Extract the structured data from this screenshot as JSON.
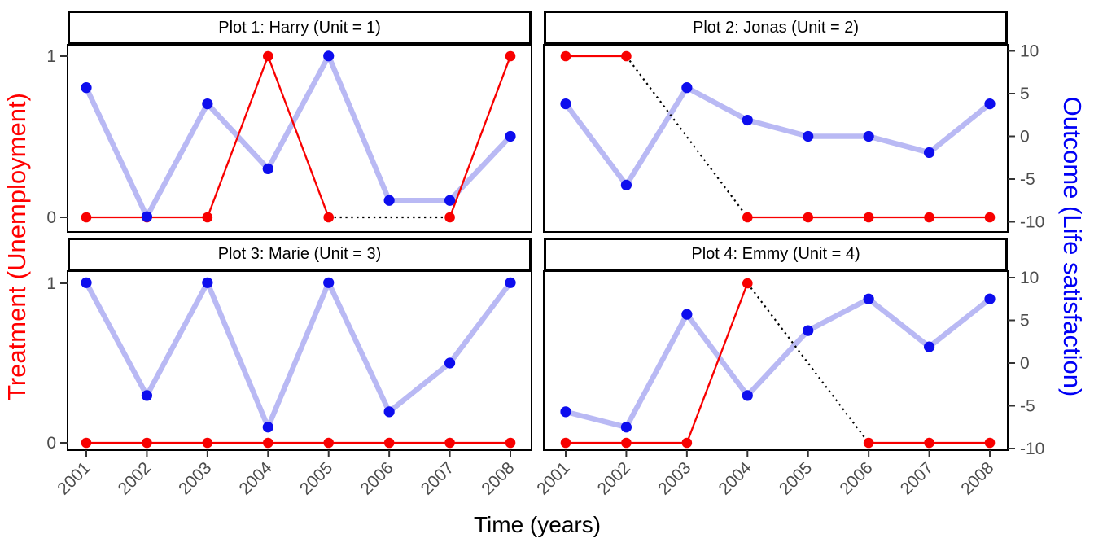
{
  "chart_data": {
    "type": "line",
    "title": "",
    "xlabel": "Time (years)",
    "ylabel_left": "Treatment (Unemployment)",
    "ylabel_right": "Outcome (Life satisfaction)",
    "x_tick_labels": [
      "2001",
      "2002",
      "2003",
      "2004",
      "2005",
      "2006",
      "2007",
      "2008"
    ],
    "y_ticks_left": [
      {
        "label": "0",
        "value": 0
      },
      {
        "label": "1",
        "value": 1
      }
    ],
    "y_ticks_right": [
      {
        "label": "-10",
        "value": -10
      },
      {
        "label": "-5",
        "value": -5
      },
      {
        "label": "0",
        "value": 0
      },
      {
        "label": "5",
        "value": 5
      },
      {
        "label": "10",
        "value": 10
      }
    ],
    "ylim_right": [
      -10,
      10
    ],
    "grid": false,
    "legend_position": "none",
    "facet_layout": "2x2",
    "panels": [
      {
        "title": "Plot 1: Harry (Unit = 1)",
        "unit": "Harry",
        "unit_id": 1,
        "treatment": [
          0,
          0,
          0,
          1,
          0,
          null,
          0,
          1
        ],
        "outcome": [
          5.7,
          -9.4,
          3.8,
          -3.8,
          9.4,
          -7.5,
          -7.5,
          0
        ]
      },
      {
        "title": "Plot 2: Jonas (Unit = 2)",
        "unit": "Jonas",
        "unit_id": 2,
        "treatment": [
          1,
          1,
          null,
          0,
          0,
          0,
          0,
          0
        ],
        "outcome": [
          3.8,
          -5.7,
          5.7,
          1.9,
          0,
          0,
          -1.9,
          3.8
        ]
      },
      {
        "title": "Plot 3: Marie (Unit = 3)",
        "unit": "Marie",
        "unit_id": 3,
        "treatment": [
          0,
          0,
          0,
          0,
          0,
          0,
          0,
          0
        ],
        "outcome": [
          9.4,
          -3.8,
          9.4,
          -7.5,
          9.4,
          -5.7,
          0,
          9.4
        ]
      },
      {
        "title": "Plot 4: Emmy (Unit = 4)",
        "unit": "Emmy",
        "unit_id": 4,
        "treatment": [
          0,
          0,
          0,
          1,
          null,
          0,
          0,
          0
        ],
        "outcome": [
          -5.7,
          -7.5,
          5.7,
          -3.8,
          3.8,
          7.5,
          1.9,
          7.5
        ]
      }
    ],
    "series_notes": {
      "treatment_series": "red solid line with points, plotted at left-axis 0/1 levels; black dotted segments bridge years with missing treatment",
      "outcome_series": "thick light-blue line with dark blue points, read against right axis"
    },
    "colors": {
      "treatment_line": "#f80000",
      "treatment_point": "#f80000",
      "outcome_line": "#b9b9f4",
      "outcome_point": "#0d0dee",
      "gap_line": "#000000",
      "tick_label": "#4d4d4d",
      "tick_mark": "#333333",
      "panel_border": "#000000",
      "axis_title_left": "#ff0000",
      "axis_title_right": "#0000f5",
      "axis_title_bottom": "#000000"
    }
  }
}
